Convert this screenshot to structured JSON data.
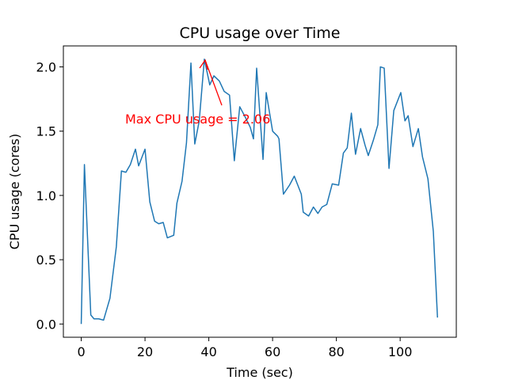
{
  "chart_data": {
    "type": "line",
    "title": "CPU usage over Time",
    "xlabel": "Time (sec)",
    "ylabel": "CPU usage (cores)",
    "annotation": {
      "text": "Max CPU usage = 2.06",
      "color": "#ff0000"
    },
    "color": "#1f77b4",
    "x": [
      0,
      1,
      3,
      4,
      5.5,
      7,
      9,
      11,
      12.6,
      14,
      15.4,
      17,
      18,
      20,
      21.5,
      23,
      24.3,
      25.7,
      27,
      29,
      30,
      31.6,
      33,
      34.4,
      35.6,
      37,
      38.6,
      40.3,
      41.6,
      43.3,
      44.8,
      46.5,
      48,
      49.7,
      51.2,
      53,
      54,
      55,
      57,
      58,
      60,
      61.6,
      62,
      63.4,
      65.3,
      66.8,
      69,
      69.6,
      71.3,
      72.8,
      74.2,
      75.5,
      77,
      78.7,
      80.7,
      82.2,
      83.4,
      84.7,
      86,
      87.6,
      89,
      90,
      91.6,
      93,
      93.8,
      95,
      96.5,
      98,
      100.2,
      101.5,
      102.5,
      104,
      105.7,
      107,
      108.7,
      110.4,
      111.7
    ],
    "values": [
      0,
      1.24,
      0.07,
      0.04,
      0.04,
      0.03,
      0.2,
      0.6,
      1.19,
      1.18,
      1.24,
      1.36,
      1.23,
      1.36,
      0.95,
      0.8,
      0.78,
      0.79,
      0.67,
      0.69,
      0.94,
      1.11,
      1.41,
      2.03,
      1.4,
      1.58,
      2.06,
      1.86,
      1.93,
      1.89,
      1.81,
      1.78,
      1.27,
      1.69,
      1.62,
      1.53,
      1.44,
      1.99,
      1.28,
      1.8,
      1.5,
      1.46,
      1.44,
      1.01,
      1.08,
      1.15,
      1.01,
      0.87,
      0.84,
      0.91,
      0.86,
      0.91,
      0.93,
      1.09,
      1.08,
      1.33,
      1.37,
      1.64,
      1.32,
      1.52,
      1.39,
      1.31,
      1.43,
      1.55,
      2.0,
      1.99,
      1.21,
      1.66,
      1.8,
      1.58,
      1.62,
      1.38,
      1.52,
      1.3,
      1.13,
      0.72,
      0.05
    ],
    "xlim": [
      -5.6,
      117.6
    ],
    "xticks": [
      0,
      20,
      40,
      60,
      80,
      100
    ],
    "ylim": [
      -0.103,
      2.163
    ],
    "yticks": [
      {
        "value": 0,
        "label": "0.0"
      },
      0.5,
      {
        "value": 1,
        "label": "1.0"
      },
      1.5,
      {
        "value": 2,
        "label": "2.0"
      }
    ]
  }
}
